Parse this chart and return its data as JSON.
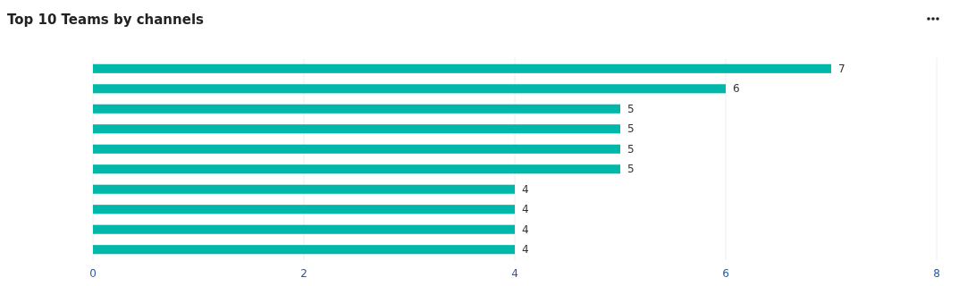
{
  "chart_data": {
    "type": "bar",
    "title": "Top 10 Teams by channels",
    "orientation": "horizontal",
    "categories": [
      null,
      null,
      null,
      null,
      null,
      null,
      null,
      null,
      null,
      null
    ],
    "values": [
      7,
      6,
      5,
      5,
      5,
      5,
      4,
      4,
      4,
      4
    ],
    "color": "#00b8a9",
    "xlim": [
      0,
      8
    ],
    "xticks": [
      0,
      2,
      4,
      6,
      8
    ],
    "grid": "x",
    "data_labels": true
  }
}
